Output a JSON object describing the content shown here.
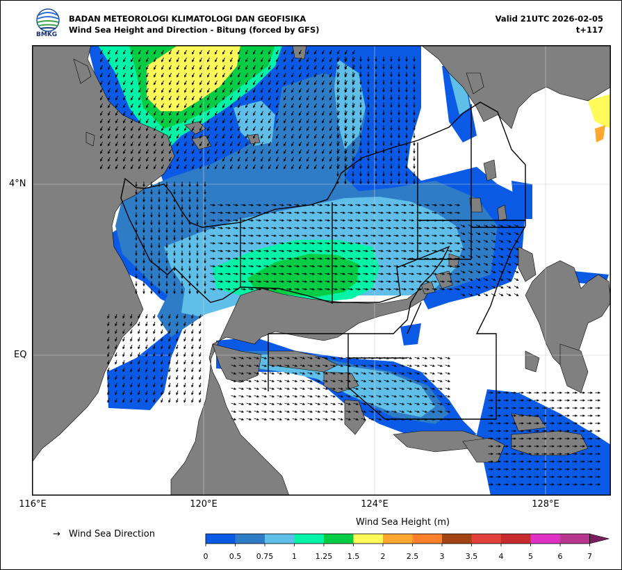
{
  "header": {
    "logo_text": "BMKG",
    "title_line1": "BADAN METEOROLOGI KLIMATOLOGI DAN GEOFISIKA",
    "title_line2": "Wind Sea Height and Direction - Bitung (forced by GFS)",
    "valid_line1": "Valid 21UTC 2026-02-05",
    "valid_line2": "t+117"
  },
  "map": {
    "latitude_labels": [
      "4°N",
      "EQ"
    ],
    "longitude_labels": [
      "116°E",
      "120°E",
      "124°E",
      "128°E"
    ],
    "land_color": "#808080",
    "sea_color": "#ffffff",
    "dominant_flow": "southward north of 3°N, eastward across Molucca Sea"
  },
  "legend": {
    "direction_label": "Wind Sea Direction",
    "direction_glyph": "→",
    "colorbar_title": "Wind Sea Height (m)",
    "colorbar_ticks": [
      "0",
      "0.5",
      "0.75",
      "1",
      "1.25",
      "1.5",
      "2",
      "2.5",
      "3",
      "3.5",
      "4",
      "5",
      "6",
      "7"
    ],
    "colorbar_colors": [
      "#0a5ae6",
      "#2e7bc6",
      "#5fbfe9",
      "#00f4a8",
      "#03cd45",
      "#fffa5a",
      "#ffa72e",
      "#ff7f2a",
      "#a34213",
      "#e2403a",
      "#c82a2d",
      "#e031c4",
      "#b9368f"
    ],
    "colorbar_extend_color": "#7a1f5e"
  }
}
